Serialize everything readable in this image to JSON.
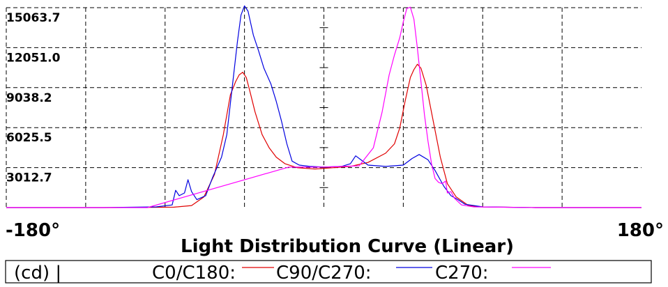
{
  "chart_data": {
    "type": "line",
    "title": "Light Distribution Curve (Linear)",
    "x_range_labels": [
      "-180°",
      "180°"
    ],
    "xlim": [
      -180,
      180
    ],
    "ylim": [
      0,
      15063.7
    ],
    "y_tick_labels": [
      "15063.7",
      "12051.0",
      "9038.2",
      "6025.5",
      "3012.7"
    ],
    "y_ticks": [
      15063.7,
      12051.0,
      9038.2,
      6025.5,
      3012.7
    ],
    "grid": true,
    "legend": {
      "unit_label": "(cd) |",
      "entries": [
        {
          "label": "C0/C180:",
          "color": "#e00000"
        },
        {
          "label": "C90/C270:",
          "color": "#0000e0"
        },
        {
          "label": "C270:",
          "color": "#ff00ff"
        }
      ],
      "placement": "bottom"
    },
    "series": [
      {
        "name": "C0/C180:",
        "color": "#e00000",
        "points": [
          [
            -180,
            0
          ],
          [
            -120,
            0
          ],
          [
            -85,
            30
          ],
          [
            -75,
            150
          ],
          [
            -68,
            800
          ],
          [
            -62,
            2500
          ],
          [
            -57,
            5500
          ],
          [
            -53,
            8500
          ],
          [
            -50,
            9500
          ],
          [
            -48,
            10000
          ],
          [
            -46,
            10200
          ],
          [
            -44,
            9800
          ],
          [
            -42,
            8800
          ],
          [
            -39,
            7200
          ],
          [
            -35,
            5500
          ],
          [
            -31,
            4500
          ],
          [
            -27,
            3800
          ],
          [
            -22,
            3300
          ],
          [
            -15,
            3000
          ],
          [
            -5,
            2900
          ],
          [
            5,
            3000
          ],
          [
            15,
            3100
          ],
          [
            25,
            3400
          ],
          [
            35,
            4100
          ],
          [
            40,
            4800
          ],
          [
            43,
            6000
          ],
          [
            46,
            8000
          ],
          [
            49,
            9800
          ],
          [
            51,
            10400
          ],
          [
            53,
            10800
          ],
          [
            55,
            10500
          ],
          [
            58,
            9200
          ],
          [
            62,
            6500
          ],
          [
            66,
            3800
          ],
          [
            70,
            1800
          ],
          [
            75,
            800
          ],
          [
            82,
            150
          ],
          [
            90,
            50
          ],
          [
            120,
            0
          ],
          [
            180,
            0
          ]
        ]
      },
      {
        "name": "C90/C270:",
        "color": "#0000e0",
        "points": [
          [
            -180,
            0
          ],
          [
            -125,
            0
          ],
          [
            -95,
            50
          ],
          [
            -86,
            200
          ],
          [
            -84,
            1300
          ],
          [
            -82,
            900
          ],
          [
            -79,
            1100
          ],
          [
            -77,
            2100
          ],
          [
            -75,
            1200
          ],
          [
            -72,
            600
          ],
          [
            -67,
            900
          ],
          [
            -63,
            2300
          ],
          [
            -58,
            3800
          ],
          [
            -55,
            5500
          ],
          [
            -52,
            9000
          ],
          [
            -49,
            12500
          ],
          [
            -47,
            14500
          ],
          [
            -45,
            15200
          ],
          [
            -43,
            14800
          ],
          [
            -40,
            13000
          ],
          [
            -37,
            11800
          ],
          [
            -34,
            10500
          ],
          [
            -30,
            9300
          ],
          [
            -27,
            8000
          ],
          [
            -24,
            6500
          ],
          [
            -21,
            4800
          ],
          [
            -18,
            3500
          ],
          [
            -14,
            3200
          ],
          [
            -8,
            3100
          ],
          [
            0,
            3050
          ],
          [
            10,
            3100
          ],
          [
            15,
            3300
          ],
          [
            18,
            3900
          ],
          [
            21,
            3600
          ],
          [
            25,
            3200
          ],
          [
            35,
            3100
          ],
          [
            45,
            3200
          ],
          [
            50,
            3700
          ],
          [
            54,
            4000
          ],
          [
            59,
            3600
          ],
          [
            63,
            2800
          ],
          [
            68,
            1600
          ],
          [
            72,
            900
          ],
          [
            76,
            600
          ],
          [
            80,
            250
          ],
          [
            90,
            50
          ],
          [
            120,
            0
          ],
          [
            180,
            0
          ]
        ]
      },
      {
        "name": "C270:",
        "color": "#ff00ff",
        "points": [
          [
            -180,
            0
          ],
          [
            -100,
            0
          ],
          [
            -20,
            3050
          ],
          [
            0,
            3050
          ],
          [
            20,
            3150
          ],
          [
            28,
            4500
          ],
          [
            33,
            7200
          ],
          [
            37,
            10000
          ],
          [
            40,
            11500
          ],
          [
            43,
            12800
          ],
          [
            45,
            14000
          ],
          [
            47,
            15000
          ],
          [
            49,
            15100
          ],
          [
            51,
            14200
          ],
          [
            53,
            12000
          ],
          [
            55,
            9500
          ],
          [
            57,
            7000
          ],
          [
            59,
            5000
          ],
          [
            61,
            3300
          ],
          [
            63,
            2200
          ],
          [
            65,
            1900
          ],
          [
            67,
            1800
          ],
          [
            69,
            2000
          ],
          [
            70,
            1100
          ],
          [
            72,
            1200
          ],
          [
            74,
            700
          ],
          [
            78,
            200
          ],
          [
            85,
            50
          ],
          [
            120,
            0
          ],
          [
            180,
            0
          ]
        ]
      }
    ]
  }
}
